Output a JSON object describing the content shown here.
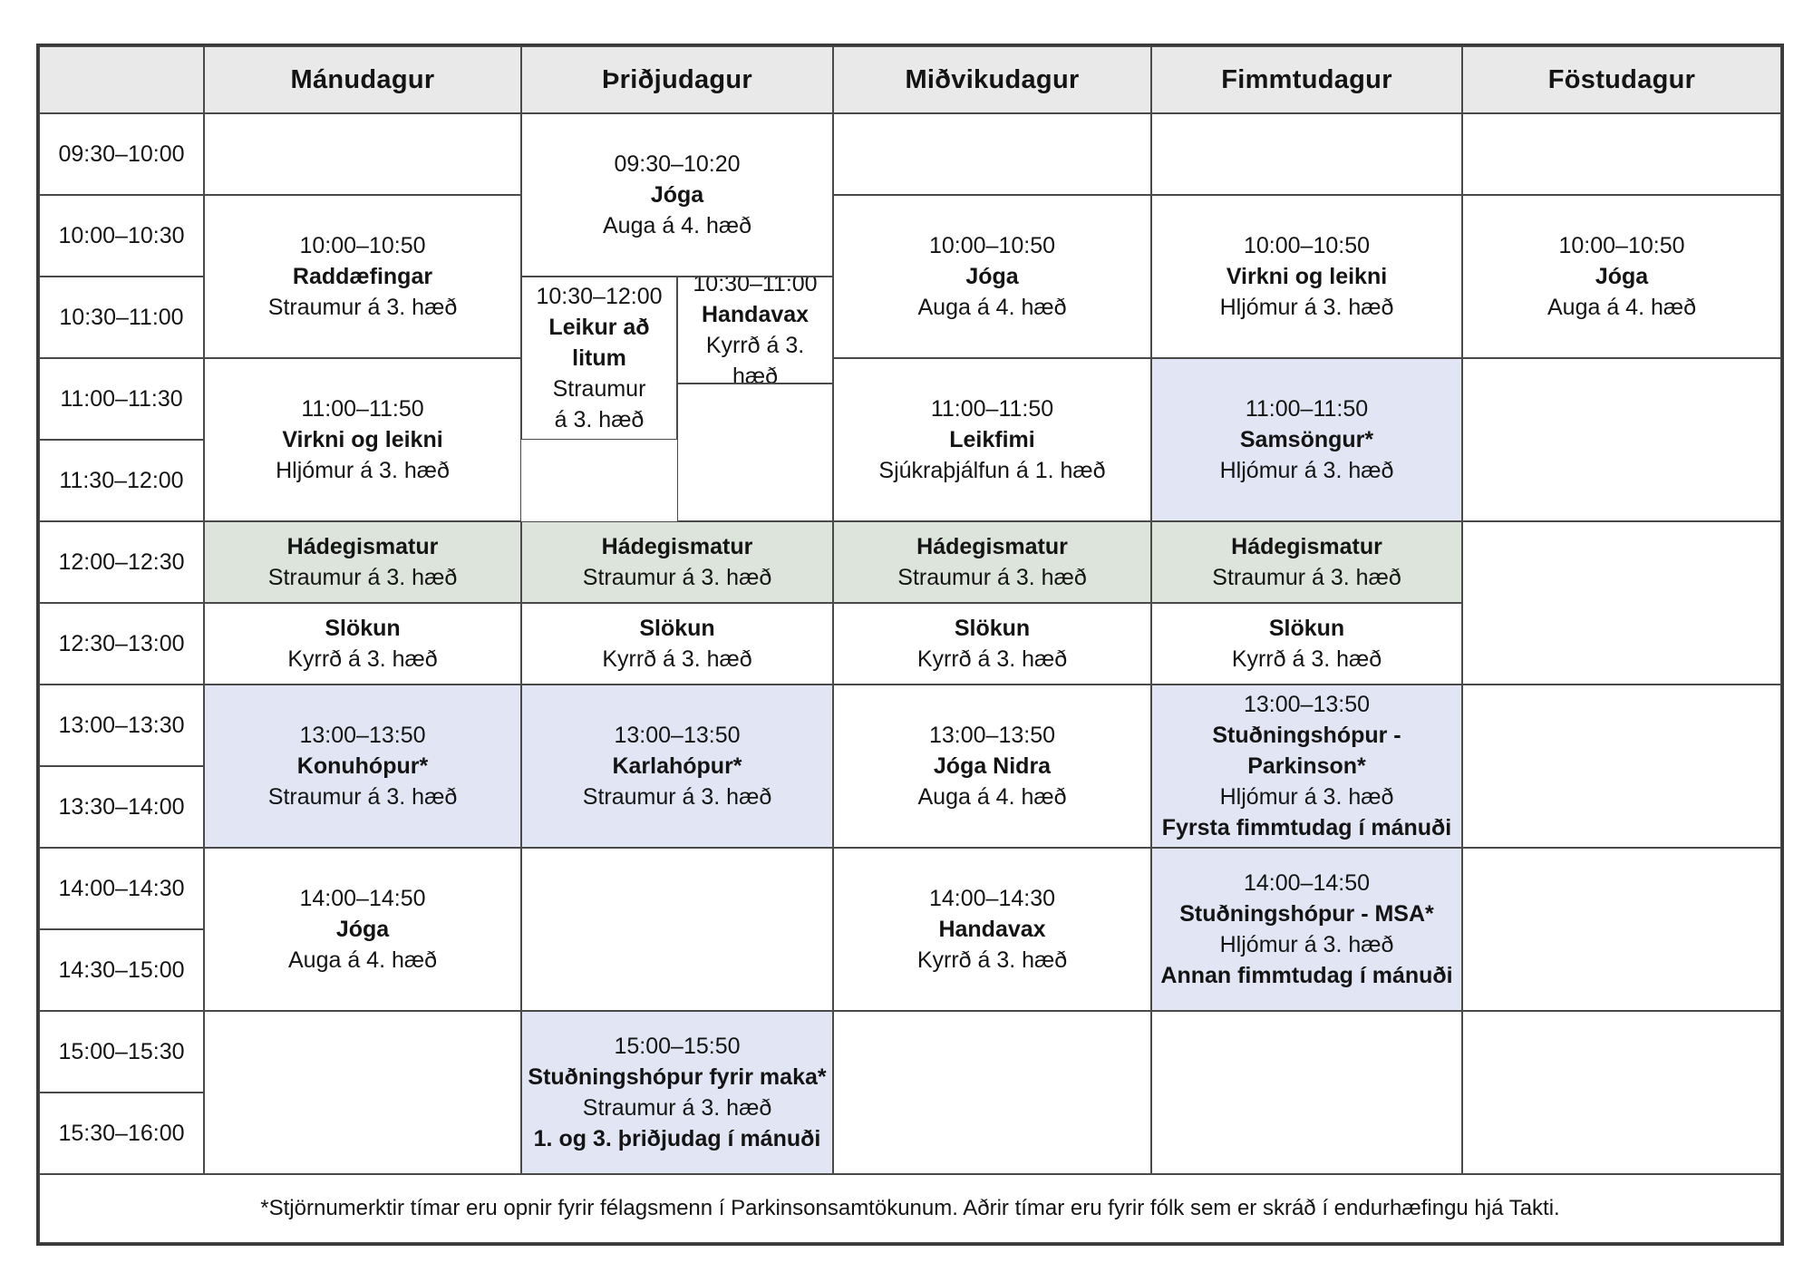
{
  "colors": {
    "header_bg": "#e9e9e9",
    "lunch_green": "#dde4db",
    "highlight_blue": "#e2e6f4",
    "grid_line": "#4a4a4a",
    "outer_border": "#3a3a3a",
    "text": "#141414"
  },
  "table": {
    "header": {
      "corner": "",
      "day_cells": [
        {
          "label": "Mánudagur",
          "col": 2,
          "colSpan": 1
        },
        {
          "label": "Þriðjudagur",
          "col": 3,
          "colSpan": 2
        },
        {
          "label": "Miðvikudagur",
          "col": 5,
          "colSpan": 1
        },
        {
          "label": "Fimmtudagur",
          "col": 6,
          "colSpan": 1
        },
        {
          "label": "Föstudagur",
          "col": 7,
          "colSpan": 1
        }
      ]
    },
    "time_cells": [
      {
        "label": "09:30–10:00",
        "row": 2,
        "rowSpan": 1
      },
      {
        "label": "10:00–10:30",
        "row": 3,
        "rowSpan": 1
      },
      {
        "label": "10:30–11:00",
        "row": 4,
        "rowSpan": 1
      },
      {
        "label": "11:00–11:30",
        "row": 5,
        "rowSpan": 2
      },
      {
        "label": "11:30–12:00",
        "row": 7,
        "rowSpan": 1
      },
      {
        "label": "12:00–12:30",
        "row": 8,
        "rowSpan": 1
      },
      {
        "label": "12:30–13:00",
        "row": 9,
        "rowSpan": 1
      },
      {
        "label": "13:00–13:30",
        "row": 10,
        "rowSpan": 1
      },
      {
        "label": "13:30–14:00",
        "row": 11,
        "rowSpan": 1
      },
      {
        "label": "14:00–14:30",
        "row": 12,
        "rowSpan": 1
      },
      {
        "label": "14:30–15:00",
        "row": 13,
        "rowSpan": 1
      },
      {
        "label": "15:00–15:30",
        "row": 14,
        "rowSpan": 1
      },
      {
        "label": "15:30–16:00",
        "row": 15,
        "rowSpan": 1
      }
    ],
    "footnote": "*Stjörnumerktir tímar eru opnir fyrir félagsmenn í Parkinsonsamtökunum. Aðrir tímar eru fyrir fólk sem er skráð í endurhæfingu hjá Takti."
  },
  "cells": [
    {
      "day": "Mánudagur",
      "col": 2,
      "colSpan": 1,
      "row": 2,
      "rowSpan": 1,
      "bg": "white",
      "lines": []
    },
    {
      "day": "Mánudagur",
      "col": 2,
      "colSpan": 1,
      "row": 3,
      "rowSpan": 2,
      "bg": "white",
      "lines": [
        {
          "text": "10:00–10:50",
          "bold": false
        },
        {
          "text": "Raddæfingar",
          "bold": true
        },
        {
          "text": "Straumur á 3. hæð",
          "bold": false
        }
      ]
    },
    {
      "day": "Mánudagur",
      "col": 2,
      "colSpan": 1,
      "row": 5,
      "rowSpan": 3,
      "bg": "white",
      "lines": [
        {
          "text": "11:00–11:50",
          "bold": false
        },
        {
          "text": "Virkni og leikni",
          "bold": true
        },
        {
          "text": "Hljómur á 3. hæð",
          "bold": false
        }
      ]
    },
    {
      "day": "Mánudagur",
      "col": 2,
      "colSpan": 1,
      "row": 8,
      "rowSpan": 1,
      "bg": "green",
      "lines": [
        {
          "text": "Hádegismatur",
          "bold": true
        },
        {
          "text": "Straumur á 3. hæð",
          "bold": false
        }
      ]
    },
    {
      "day": "Mánudagur",
      "col": 2,
      "colSpan": 1,
      "row": 9,
      "rowSpan": 1,
      "bg": "white",
      "lines": [
        {
          "text": "Slökun",
          "bold": true
        },
        {
          "text": "Kyrrð á 3. hæð",
          "bold": false
        }
      ]
    },
    {
      "day": "Mánudagur",
      "col": 2,
      "colSpan": 1,
      "row": 10,
      "rowSpan": 2,
      "bg": "blue",
      "lines": [
        {
          "text": "13:00–13:50",
          "bold": false
        },
        {
          "text": "Konuhópur*",
          "bold": true
        },
        {
          "text": "Straumur á 3. hæð",
          "bold": false
        }
      ]
    },
    {
      "day": "Mánudagur",
      "col": 2,
      "colSpan": 1,
      "row": 12,
      "rowSpan": 2,
      "bg": "white",
      "lines": [
        {
          "text": "14:00–14:50",
          "bold": false
        },
        {
          "text": "Jóga",
          "bold": true
        },
        {
          "text": "Auga á 4. hæð",
          "bold": false
        }
      ]
    },
    {
      "day": "Mánudagur",
      "col": 2,
      "colSpan": 1,
      "row": 14,
      "rowSpan": 2,
      "bg": "white",
      "lines": []
    },
    {
      "day": "Þriðjudagur",
      "col": 3,
      "colSpan": 2,
      "row": 2,
      "rowSpan": 2,
      "bg": "white",
      "lines": [
        {
          "text": "09:30–10:20",
          "bold": false
        },
        {
          "text": "Jóga",
          "bold": true
        },
        {
          "text": "Auga á 4. hæð",
          "bold": false
        }
      ]
    },
    {
      "day": "Þriðjudagur",
      "col": 3,
      "colSpan": 1,
      "row": 4,
      "rowSpan": 3,
      "bg": "white",
      "lines": [
        {
          "text": "10:30–12:00",
          "bold": false
        },
        {
          "text": "Leikur að litum",
          "bold": true
        },
        {
          "text": "Straumur",
          "bold": false
        },
        {
          "text": "á 3. hæð",
          "bold": false
        }
      ]
    },
    {
      "day": "Þriðjudagur",
      "col": 4,
      "colSpan": 1,
      "row": 4,
      "rowSpan": 2,
      "bg": "white",
      "lines": [
        {
          "text": "10:30–11:00",
          "bold": false
        },
        {
          "text": "Handavax",
          "bold": true
        },
        {
          "text": "Kyrrð á 3. hæð",
          "bold": false
        }
      ]
    },
    {
      "day": "Þriðjudagur",
      "col": 4,
      "colSpan": 1,
      "row": 6,
      "rowSpan": 2,
      "bg": "white",
      "lines": []
    },
    {
      "day": "Þriðjudagur",
      "col": 3,
      "colSpan": 2,
      "row": 8,
      "rowSpan": 1,
      "bg": "green",
      "lines": [
        {
          "text": "Hádegismatur",
          "bold": true
        },
        {
          "text": "Straumur á 3. hæð",
          "bold": false
        }
      ]
    },
    {
      "day": "Þriðjudagur",
      "col": 3,
      "colSpan": 2,
      "row": 9,
      "rowSpan": 1,
      "bg": "white",
      "lines": [
        {
          "text": "Slökun",
          "bold": true
        },
        {
          "text": "Kyrrð á 3. hæð",
          "bold": false
        }
      ]
    },
    {
      "day": "Þriðjudagur",
      "col": 3,
      "colSpan": 2,
      "row": 10,
      "rowSpan": 2,
      "bg": "blue",
      "lines": [
        {
          "text": "13:00–13:50",
          "bold": false
        },
        {
          "text": "Karlahópur*",
          "bold": true
        },
        {
          "text": "Straumur á 3. hæð",
          "bold": false
        }
      ]
    },
    {
      "day": "Þriðjudagur",
      "col": 3,
      "colSpan": 2,
      "row": 12,
      "rowSpan": 2,
      "bg": "white",
      "lines": []
    },
    {
      "day": "Þriðjudagur",
      "col": 3,
      "colSpan": 2,
      "row": 14,
      "rowSpan": 2,
      "bg": "blue",
      "lines": [
        {
          "text": "15:00–15:50",
          "bold": false
        },
        {
          "text": "Stuðningshópur fyrir maka*",
          "bold": true
        },
        {
          "text": "Straumur á 3. hæð",
          "bold": false
        },
        {
          "text": "1. og 3. þriðjudag í mánuði",
          "bold": true
        }
      ]
    },
    {
      "day": "Miðvikudagur",
      "col": 5,
      "colSpan": 1,
      "row": 2,
      "rowSpan": 1,
      "bg": "white",
      "lines": []
    },
    {
      "day": "Miðvikudagur",
      "col": 5,
      "colSpan": 1,
      "row": 3,
      "rowSpan": 2,
      "bg": "white",
      "lines": [
        {
          "text": "10:00–10:50",
          "bold": false
        },
        {
          "text": "Jóga",
          "bold": true
        },
        {
          "text": "Auga á 4. hæð",
          "bold": false
        }
      ]
    },
    {
      "day": "Miðvikudagur",
      "col": 5,
      "colSpan": 1,
      "row": 5,
      "rowSpan": 3,
      "bg": "white",
      "lines": [
        {
          "text": "11:00–11:50",
          "bold": false
        },
        {
          "text": "Leikfimi",
          "bold": true
        },
        {
          "text": "Sjúkraþjálfun á 1. hæð",
          "bold": false
        }
      ]
    },
    {
      "day": "Miðvikudagur",
      "col": 5,
      "colSpan": 1,
      "row": 8,
      "rowSpan": 1,
      "bg": "green",
      "lines": [
        {
          "text": "Hádegismatur",
          "bold": true
        },
        {
          "text": "Straumur á 3. hæð",
          "bold": false
        }
      ]
    },
    {
      "day": "Miðvikudagur",
      "col": 5,
      "colSpan": 1,
      "row": 9,
      "rowSpan": 1,
      "bg": "white",
      "lines": [
        {
          "text": "Slökun",
          "bold": true
        },
        {
          "text": "Kyrrð á 3. hæð",
          "bold": false
        }
      ]
    },
    {
      "day": "Miðvikudagur",
      "col": 5,
      "colSpan": 1,
      "row": 10,
      "rowSpan": 2,
      "bg": "white",
      "lines": [
        {
          "text": "13:00–13:50",
          "bold": false
        },
        {
          "text": "Jóga Nidra",
          "bold": true
        },
        {
          "text": "Auga á 4. hæð",
          "bold": false
        }
      ]
    },
    {
      "day": "Miðvikudagur",
      "col": 5,
      "colSpan": 1,
      "row": 12,
      "rowSpan": 2,
      "bg": "white",
      "lines": [
        {
          "text": "14:00–14:30",
          "bold": false
        },
        {
          "text": "Handavax",
          "bold": true
        },
        {
          "text": "Kyrrð á 3. hæð",
          "bold": false
        }
      ]
    },
    {
      "day": "Miðvikudagur",
      "col": 5,
      "colSpan": 1,
      "row": 14,
      "rowSpan": 2,
      "bg": "white",
      "lines": []
    },
    {
      "day": "Fimmtudagur",
      "col": 6,
      "colSpan": 1,
      "row": 2,
      "rowSpan": 1,
      "bg": "white",
      "lines": []
    },
    {
      "day": "Fimmtudagur",
      "col": 6,
      "colSpan": 1,
      "row": 3,
      "rowSpan": 2,
      "bg": "white",
      "lines": [
        {
          "text": "10:00–10:50",
          "bold": false
        },
        {
          "text": "Virkni og leikni",
          "bold": true
        },
        {
          "text": "Hljómur á 3. hæð",
          "bold": false
        }
      ]
    },
    {
      "day": "Fimmtudagur",
      "col": 6,
      "colSpan": 1,
      "row": 5,
      "rowSpan": 3,
      "bg": "blue",
      "lines": [
        {
          "text": "11:00–11:50",
          "bold": false
        },
        {
          "text": "Samsöngur*",
          "bold": true
        },
        {
          "text": "Hljómur á 3. hæð",
          "bold": false
        }
      ]
    },
    {
      "day": "Fimmtudagur",
      "col": 6,
      "colSpan": 1,
      "row": 8,
      "rowSpan": 1,
      "bg": "green",
      "lines": [
        {
          "text": "Hádegismatur",
          "bold": true
        },
        {
          "text": "Straumur á 3. hæð",
          "bold": false
        }
      ]
    },
    {
      "day": "Fimmtudagur",
      "col": 6,
      "colSpan": 1,
      "row": 9,
      "rowSpan": 1,
      "bg": "white",
      "lines": [
        {
          "text": "Slökun",
          "bold": true
        },
        {
          "text": "Kyrrð á 3. hæð",
          "bold": false
        }
      ]
    },
    {
      "day": "Fimmtudagur",
      "col": 6,
      "colSpan": 1,
      "row": 10,
      "rowSpan": 2,
      "bg": "blue",
      "lines": [
        {
          "text": "13:00–13:50",
          "bold": false
        },
        {
          "text": "Stuðningshópur - Parkinson*",
          "bold": true
        },
        {
          "text": "Hljómur á 3. hæð",
          "bold": false
        },
        {
          "text": "Fyrsta fimmtudag í mánuði",
          "bold": true
        }
      ]
    },
    {
      "day": "Fimmtudagur",
      "col": 6,
      "colSpan": 1,
      "row": 12,
      "rowSpan": 2,
      "bg": "blue",
      "lines": [
        {
          "text": "14:00–14:50",
          "bold": false
        },
        {
          "text": "Stuðningshópur - MSA*",
          "bold": true
        },
        {
          "text": "Hljómur á 3. hæð",
          "bold": false
        },
        {
          "text": "Annan fimmtudag í mánuði",
          "bold": true
        }
      ]
    },
    {
      "day": "Fimmtudagur",
      "col": 6,
      "colSpan": 1,
      "row": 14,
      "rowSpan": 2,
      "bg": "white",
      "lines": []
    },
    {
      "day": "Föstudagur",
      "col": 7,
      "colSpan": 1,
      "row": 2,
      "rowSpan": 1,
      "bg": "white",
      "lines": []
    },
    {
      "day": "Föstudagur",
      "col": 7,
      "colSpan": 1,
      "row": 3,
      "rowSpan": 2,
      "bg": "white",
      "lines": [
        {
          "text": "10:00–10:50",
          "bold": false
        },
        {
          "text": "Jóga",
          "bold": true
        },
        {
          "text": "Auga á 4. hæð",
          "bold": false
        }
      ]
    },
    {
      "day": "Föstudagur",
      "col": 7,
      "colSpan": 1,
      "row": 5,
      "rowSpan": 3,
      "bg": "white",
      "lines": []
    },
    {
      "day": "Föstudagur",
      "col": 7,
      "colSpan": 1,
      "row": 8,
      "rowSpan": 2,
      "bg": "white",
      "lines": []
    },
    {
      "day": "Föstudagur",
      "col": 7,
      "colSpan": 1,
      "row": 10,
      "rowSpan": 2,
      "bg": "white",
      "lines": []
    },
    {
      "day": "Föstudagur",
      "col": 7,
      "colSpan": 1,
      "row": 12,
      "rowSpan": 2,
      "bg": "white",
      "lines": []
    },
    {
      "day": "Föstudagur",
      "col": 7,
      "colSpan": 1,
      "row": 14,
      "rowSpan": 2,
      "bg": "white",
      "lines": []
    }
  ]
}
